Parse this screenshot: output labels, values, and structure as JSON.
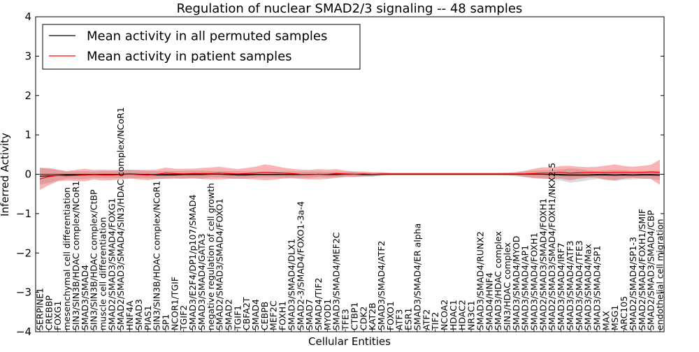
{
  "chart_data": {
    "type": "line",
    "title": "Regulation of nuclear SMAD2/3 signaling -- 48 samples",
    "xlabel": "Cellular Entities",
    "ylabel": "Inferred Activity",
    "ylim": [
      -4,
      4
    ],
    "yticks": [
      "4",
      "3",
      "2",
      "1",
      "0",
      "−1",
      "−2",
      "−3",
      "−4"
    ],
    "legend": {
      "placement": "top-left",
      "entries": [
        {
          "label": "Mean activity in all permuted samples",
          "color": "#000000"
        },
        {
          "label": "Mean activity in patient samples",
          "color": "#ff0000"
        }
      ]
    },
    "categories": [
      "SERPINE1",
      "CREBBP",
      "FOXG1",
      "mesenchymal cell differentiation",
      "SIN3/SIN3B/HDAC complex/NCoR1",
      "SMAD3/SMAD4",
      "SIN3/SIN3B/HDAC complex/CtBP",
      "muscle cell differentiation",
      "SMAD2/SMAD3/SMAD4/FOXG1",
      "SMAD2/SMAD3/SMAD4/SIN3/HDAC complex/NCoR1",
      "HNF4A",
      "SMAD3",
      "PIAS1",
      "SIN3/SIN3B/HDAC complex/NCoR1",
      "SP1",
      "NCOR1/TGIF",
      "TGIF2",
      "SMAD3/E2F4/DP1/p107/SMAD4",
      "SMAD3/SMAD4/GATA3",
      "negative regulation of cell growth",
      "SMAD2/SMAD3/SMAD4/FOXO1",
      "SMAD2",
      "TGIF1",
      "CBFA2T",
      "SMAD4",
      "CEBPB",
      "MEF2C",
      "FOXH1",
      "SMAD3/SMAD4/DLX1",
      "SMAD2-3/SMAD4/FOXO1-3a-4",
      "SMAD7",
      "SMAD4/TIF2",
      "MYOD1",
      "SMAD3/SMAD4/MEF2C",
      "TFE3",
      "CTBP1",
      "CDK2",
      "KAT2B",
      "SMAD3/SMAD4/ATF2",
      "FOXO1",
      "ATF3",
      "ESR1",
      "SMAD3/SMAD4/ER alpha",
      "ATF2",
      "TIF2",
      "NCOA2",
      "HDAC1",
      "HDAC2",
      "NR3C1",
      "SMAD3/SMAD4/RUNX2",
      "SMAD4/HNF4",
      "SMAD3/HDAC complex",
      "SIN3/HDAC complex",
      "SMAD3/SMAD4/MYOD",
      "SMAD3/SMAD4/AP1",
      "SMAD3/SMAD4/FOXH1",
      "SMAD2/SMAD3/SMAD4/FOXH1",
      "SMAD2/SMAD3/SMAD4/FOXH1/NKX2-5",
      "SMAD3/SMAD4/IRF7",
      "SMAD3/SMAD4/ATF3",
      "SMAD3/SMAD4/TFE3",
      "SMAD3/SMAD4/Max",
      "SMAD3/SMAD4/SP1",
      "MAX",
      "MSG1",
      "ARC105",
      "SMAD2/SMAD4/SP1-3",
      "SMAD2/SMAD4/FOXH1/SMIF",
      "SMAD2/SMAD3/SMAD4/CBP",
      "endothelial cell migration"
    ],
    "series": [
      {
        "name": "Mean activity in all permuted samples",
        "color": "#000000",
        "values": [
          -0.05,
          -0.04,
          -0.03,
          -0.02,
          -0.02,
          -0.02,
          -0.01,
          -0.01,
          -0.01,
          0.0,
          0.01,
          0.0,
          -0.01,
          -0.02,
          -0.02,
          -0.02,
          -0.01,
          -0.01,
          -0.01,
          0.0,
          0.0,
          -0.01,
          -0.02,
          -0.02,
          -0.01,
          -0.01,
          -0.01,
          -0.01,
          -0.01,
          -0.01,
          -0.01,
          0.0,
          -0.01,
          -0.01,
          0.0,
          0.0,
          -0.01,
          -0.01,
          0.0,
          0.0,
          0.0,
          0.0,
          0.0,
          0.0,
          0.0,
          0.0,
          0.0,
          0.0,
          0.0,
          0.0,
          0.0,
          0.0,
          0.0,
          0.0,
          0.0,
          0.0,
          0.0,
          -0.01,
          -0.02,
          -0.03,
          -0.03,
          -0.03,
          -0.02,
          -0.02,
          -0.03,
          -0.02,
          -0.03,
          -0.02,
          -0.02,
          -0.03
        ],
        "band": [
          0.22,
          0.18,
          0.13,
          0.09,
          0.1,
          0.1,
          0.08,
          0.09,
          0.09,
          0.1,
          0.11,
          0.1,
          0.09,
          0.1,
          0.1,
          0.1,
          0.09,
          0.1,
          0.1,
          0.08,
          0.08,
          0.09,
          0.1,
          0.09,
          0.08,
          0.07,
          0.07,
          0.08,
          0.08,
          0.08,
          0.08,
          0.07,
          0.07,
          0.07,
          0.06,
          0.06,
          0.05,
          0.05,
          0.04,
          0.03,
          0.03,
          0.03,
          0.03,
          0.03,
          0.03,
          0.03,
          0.03,
          0.03,
          0.03,
          0.03,
          0.03,
          0.03,
          0.04,
          0.05,
          0.07,
          0.09,
          0.1,
          0.12,
          0.14,
          0.18,
          0.16,
          0.12,
          0.1,
          0.12,
          0.14,
          0.12,
          0.1,
          0.1,
          0.1,
          0.12
        ]
      },
      {
        "name": "Mean activity in patient samples",
        "color": "#ff0000",
        "values": [
          -0.12,
          -0.06,
          -0.03,
          -0.04,
          -0.03,
          -0.02,
          -0.01,
          -0.02,
          -0.02,
          -0.01,
          0.0,
          -0.01,
          -0.02,
          0.0,
          0.03,
          0.02,
          0.01,
          0.02,
          0.02,
          0.02,
          0.03,
          0.02,
          0.01,
          0.02,
          0.03,
          0.05,
          0.04,
          0.03,
          0.02,
          0.0,
          -0.01,
          0.0,
          0.0,
          0.02,
          0.01,
          0.0,
          0.01,
          0.0,
          0.01,
          0.01,
          0.01,
          0.01,
          0.01,
          0.01,
          0.01,
          0.01,
          0.01,
          0.01,
          0.01,
          0.01,
          0.01,
          0.01,
          0.01,
          0.01,
          0.01,
          0.02,
          0.03,
          0.03,
          0.05,
          0.03,
          0.04,
          0.05,
          0.05,
          0.04,
          0.05,
          0.05,
          0.05,
          0.05,
          0.06,
          0.05
        ],
        "band": [
          0.28,
          0.22,
          0.15,
          0.12,
          0.14,
          0.16,
          0.12,
          0.14,
          0.13,
          0.12,
          0.11,
          0.12,
          0.13,
          0.12,
          0.14,
          0.12,
          0.13,
          0.12,
          0.14,
          0.15,
          0.16,
          0.14,
          0.12,
          0.14,
          0.16,
          0.2,
          0.18,
          0.14,
          0.12,
          0.12,
          0.12,
          0.13,
          0.12,
          0.11,
          0.08,
          0.07,
          0.06,
          0.05,
          0.04,
          0.03,
          0.03,
          0.03,
          0.03,
          0.03,
          0.03,
          0.03,
          0.03,
          0.03,
          0.03,
          0.03,
          0.03,
          0.03,
          0.03,
          0.04,
          0.08,
          0.12,
          0.15,
          0.14,
          0.16,
          0.18,
          0.15,
          0.13,
          0.14,
          0.18,
          0.2,
          0.16,
          0.14,
          0.16,
          0.18,
          0.32
        ]
      }
    ]
  }
}
